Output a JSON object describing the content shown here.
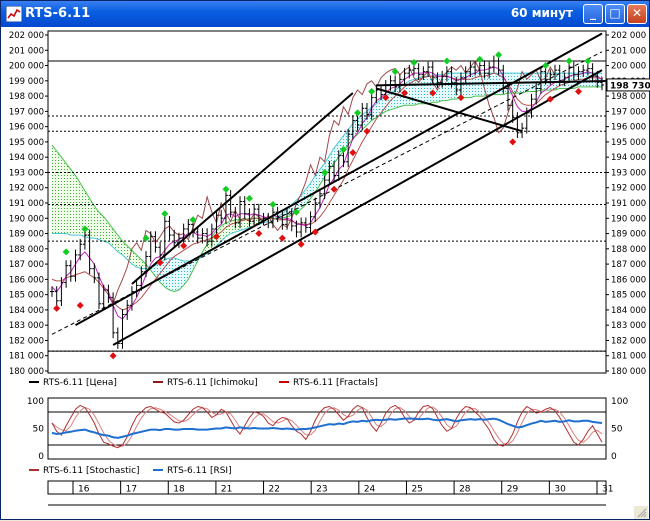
{
  "window": {
    "title": "RTS-6.11",
    "timeframe": "60 минут",
    "minimize_label": "_",
    "maximize_label": "□",
    "close_label": "✕"
  },
  "legend_main": [
    {
      "name": "RTS-6.11 [Цена]",
      "color": "#000000"
    },
    {
      "name": "RTS-6.11 [Ichimoku]",
      "color": "#8b1a1a"
    },
    {
      "name": "RTS-6.11 [Fractals]",
      "color": "#cc0000"
    }
  ],
  "legend_osc": [
    {
      "name": "RTS-6.11 [Stochastic]",
      "color": "#b03030"
    },
    {
      "name": "RTS-6.11 [RSI]",
      "color": "#1f6fd0"
    }
  ],
  "price_tag": "198 730",
  "chart_data": {
    "type": "line",
    "title": "",
    "ylim": [
      180000,
      202000
    ],
    "ytick_labels": [
      "180 000",
      "181 000",
      "182 000",
      "183 000",
      "184 000",
      "185 000",
      "186 000",
      "187 000",
      "188 000",
      "189 000",
      "190 000",
      "191 000",
      "192 000",
      "193 000",
      "194 000",
      "195 000",
      "196 000",
      "197 000",
      "198 000",
      "199 000",
      "200 000",
      "201 000",
      "202 000"
    ],
    "x_labels": [
      "16",
      "17",
      "18",
      "21",
      "22",
      "23",
      "24",
      "25",
      "28",
      "29",
      "30",
      "31"
    ],
    "price_close": [
      185200,
      184600,
      185800,
      186900,
      186200,
      187600,
      188300,
      188900,
      186700,
      186100,
      184400,
      185300,
      184800,
      182500,
      181800,
      183700,
      184300,
      185200,
      185600,
      186500,
      187500,
      188800,
      188100,
      187600,
      189800,
      188900,
      188400,
      188700,
      189300,
      189600,
      189100,
      188700,
      189000,
      188500,
      189300,
      190200,
      190000,
      191500,
      190400,
      189700,
      191100,
      190300,
      189800,
      190600,
      189900,
      190000,
      189700,
      190400,
      190100,
      189600,
      190300,
      189500,
      189100,
      189700,
      189400,
      190100,
      191000,
      191600,
      192500,
      193400,
      192800,
      194100,
      193700,
      195500,
      196400,
      196100,
      197200,
      196800,
      197900,
      198400,
      198100,
      198700,
      199000,
      198600,
      199100,
      199500,
      199700,
      199800,
      199400,
      199600,
      199900,
      199200,
      198900,
      199300,
      199600,
      198900,
      198400,
      199200,
      199600,
      199900,
      199700,
      200000,
      199500,
      199900,
      200300,
      199700,
      198500,
      197400,
      196600,
      195600,
      195900,
      196900,
      197800,
      198500,
      199600,
      199100,
      199400,
      199700,
      199000,
      199200,
      199900,
      199400,
      199600,
      199700,
      199800,
      199300,
      198900,
      198730
    ],
    "ichimoku_tenkan": [
      185500,
      185200,
      185600,
      186200,
      186500,
      187000,
      187500,
      187800,
      187400,
      187000,
      186200,
      185500,
      185200,
      184300,
      183600,
      183400,
      183800,
      184300,
      184800,
      185500,
      186300,
      187000,
      187400,
      187500,
      187900,
      188300,
      188500,
      188600,
      188800,
      189000,
      189100,
      188900,
      188900,
      188800,
      189000,
      189400,
      189600,
      190200,
      190300,
      190100,
      190300,
      190300,
      190200,
      190300,
      190200,
      190100,
      190000,
      190200,
      190100,
      189900,
      190000,
      189900,
      189600,
      189600,
      189500,
      189700,
      190200,
      190700,
      191400,
      192200,
      192600,
      193200,
      193500,
      194400,
      195200,
      195600,
      196200,
      196600,
      197200,
      197700,
      197900,
      198200,
      198500,
      198600,
      198800,
      199100,
      199300,
      199500,
      199500,
      199500,
      199600,
      199500,
      199300,
      199300,
      199300,
      199200,
      199000,
      199100,
      199200,
      199400,
      199500,
      199700,
      199700,
      199800,
      199900,
      199800,
      199300,
      198700,
      198000,
      197300,
      197000,
      197000,
      197200,
      197600,
      198200,
      198400,
      198700,
      198900,
      199000,
      199100,
      199300,
      199400,
      199400,
      199500,
      199600,
      199500,
      199300,
      199100
    ],
    "ichimoku_kijun": [
      186000,
      185900,
      185900,
      186100,
      186200,
      186300,
      186400,
      186500,
      186300,
      186100,
      185800,
      185400,
      185000,
      184500,
      184200,
      184000,
      184100,
      184300,
      184500,
      184800,
      185200,
      185600,
      186000,
      186400,
      186800,
      187200,
      187500,
      187700,
      187900,
      188100,
      188300,
      188400,
      188500,
      188600,
      188700,
      188900,
      189100,
      189400,
      189600,
      189700,
      189800,
      189900,
      189900,
      190000,
      190000,
      190000,
      190000,
      190000,
      189900,
      189900,
      189900,
      189800,
      189700,
      189600,
      189600,
      189600,
      189800,
      190100,
      190500,
      191000,
      191500,
      192000,
      192500,
      193200,
      193800,
      194400,
      195000,
      195500,
      196000,
      196500,
      196900,
      197300,
      197700,
      198000,
      198300,
      198600,
      198800,
      199000,
      199100,
      199200,
      199300,
      199300,
      199300,
      199300,
      199300,
      199200,
      199100,
      199100,
      199100,
      199100,
      199200,
      199300,
      199300,
      199400,
      199500,
      199400,
      199200,
      198800,
      198300,
      197800,
      197500,
      197400,
      197400,
      197500,
      197800,
      198100,
      198300,
      198500,
      198700,
      198800,
      198900,
      199000,
      199100,
      199100,
      199200,
      199200,
      199200,
      199100
    ],
    "chikou": [
      null,
      null,
      null,
      null,
      null,
      null,
      null,
      null,
      null,
      null,
      null,
      null,
      184900,
      184400,
      185300,
      186000,
      186800,
      188000,
      188400,
      187900,
      189200,
      189000,
      188400,
      188800,
      189300,
      189500,
      189100,
      188900,
      189000,
      188600,
      189400,
      190200,
      190000,
      191400,
      190400,
      189700,
      191000,
      190300,
      189800,
      190500,
      189900,
      190000,
      189800,
      190300,
      190100,
      189700,
      190200,
      189600,
      189200,
      189600,
      189400,
      190000,
      191000,
      191600,
      192400,
      193500,
      192800,
      194000,
      193700,
      195400,
      196400,
      196100,
      197300,
      196800,
      197900,
      198400,
      198100,
      198800,
      199000,
      198600,
      199200,
      199500,
      199700,
      199800,
      199400,
      199700,
      199900,
      199200,
      198900,
      199300,
      199600,
      198900,
      198400,
      199200,
      199600,
      199900,
      199700,
      200000,
      199500,
      199900,
      200300,
      199700,
      198500,
      197400,
      196600,
      195600,
      195900,
      196900,
      197800,
      198500,
      199600,
      199100,
      199400,
      199700,
      199000,
      199200,
      199900,
      199400,
      null,
      null,
      null,
      null,
      null,
      null,
      null,
      null,
      null,
      null
    ],
    "cloud_upper": [
      189000,
      189000,
      189000,
      189000,
      188900,
      188900,
      188900,
      188800,
      188700,
      188700,
      188600,
      188500,
      188400,
      188100,
      187800,
      187600,
      187300,
      187000,
      186800,
      186700,
      186700,
      186800,
      186900,
      187100,
      187300,
      187400,
      187400,
      187300,
      187200,
      187200,
      187200,
      187300,
      187500,
      187700,
      187900,
      188200,
      188500,
      188800,
      189000,
      189100,
      189200,
      189300,
      189400,
      189500,
      189600,
      189700,
      189800,
      189900,
      190100,
      190300,
      190600,
      190900,
      191200,
      191500,
      191900,
      192300,
      192800,
      193200,
      193600,
      194100,
      194600,
      195000,
      195400,
      195800,
      196200,
      196500,
      196800,
      197000,
      197300,
      197500,
      197800,
      198000,
      198200,
      198400,
      198600,
      198800,
      199000,
      199100,
      199200,
      199300,
      199300,
      199300,
      199400,
      199400,
      199500,
      199500,
      199500,
      199500,
      199500,
      199500,
      199500,
      199500,
      199500,
      199500,
      199500,
      199500,
      199500,
      199500,
      199500,
      199500,
      199500,
      199500,
      199500,
      199500,
      199500,
      199500,
      199500,
      199500,
      199500,
      199500,
      199500,
      199500,
      199500,
      199500,
      199500,
      199500,
      199500,
      199500
    ],
    "cloud_lower": [
      194800,
      194400,
      194000,
      193600,
      193200,
      192800,
      192300,
      191800,
      191300,
      190800,
      190400,
      190100,
      189700,
      189300,
      188900,
      188500,
      188200,
      187900,
      187600,
      187300,
      187000,
      186600,
      186200,
      185800,
      185500,
      185300,
      185200,
      185300,
      185600,
      186000,
      186600,
      187200,
      187800,
      188300,
      188800,
      189200,
      189500,
      189700,
      189800,
      189900,
      189900,
      189900,
      190000,
      190000,
      190000,
      190000,
      190000,
      190000,
      190000,
      190000,
      190100,
      190200,
      190400,
      190600,
      190900,
      191300,
      191700,
      192200,
      192700,
      193200,
      193600,
      194000,
      194400,
      194800,
      195200,
      195500,
      195800,
      196100,
      196400,
      196600,
      196800,
      197000,
      197100,
      197200,
      197300,
      197400,
      197400,
      197400,
      197500,
      197500,
      197500,
      197600,
      197600,
      197700,
      197700,
      197800,
      197800,
      197900,
      197900,
      197900,
      198000,
      198000,
      198000,
      198100,
      198100,
      198100,
      198100,
      198200,
      198200,
      198200,
      198200,
      198300,
      198300,
      198300,
      198400,
      198400,
      198400,
      198400,
      198500,
      198500,
      198500,
      198500,
      198600,
      198600,
      198600,
      198600,
      198600,
      198600
    ],
    "fractals_up": [
      [
        3,
        187800
      ],
      [
        7,
        189300
      ],
      [
        20,
        188700
      ],
      [
        24,
        190300
      ],
      [
        30,
        189900
      ],
      [
        37,
        191900
      ],
      [
        42,
        191300
      ],
      [
        47,
        190900
      ],
      [
        52,
        190400
      ],
      [
        58,
        193000
      ],
      [
        62,
        194500
      ],
      [
        65,
        196900
      ],
      [
        68,
        198300
      ],
      [
        73,
        199600
      ],
      [
        77,
        200200
      ],
      [
        84,
        200300
      ],
      [
        91,
        200400
      ],
      [
        95,
        200700
      ],
      [
        105,
        200000
      ],
      [
        110,
        200300
      ],
      [
        114,
        200300
      ]
    ],
    "fractals_down": [
      [
        1,
        184100
      ],
      [
        6,
        184300
      ],
      [
        13,
        181000
      ],
      [
        23,
        187100
      ],
      [
        28,
        188200
      ],
      [
        35,
        188800
      ],
      [
        44,
        189000
      ],
      [
        49,
        188700
      ],
      [
        53,
        188300
      ],
      [
        56,
        189100
      ],
      [
        60,
        191900
      ],
      [
        64,
        194300
      ],
      [
        67,
        195700
      ],
      [
        71,
        197900
      ],
      [
        75,
        198200
      ],
      [
        81,
        198200
      ],
      [
        87,
        197900
      ],
      [
        98,
        195000
      ],
      [
        106,
        197800
      ],
      [
        112,
        198300
      ]
    ],
    "channel_lines": [
      {
        "from": [
          13,
          181700
        ],
        "to": [
          117,
          199700
        ]
      },
      {
        "from": [
          5,
          183000
        ],
        "to": [
          117,
          202100
        ]
      },
      {
        "from": [
          17,
          185700
        ],
        "to": [
          64,
          198200
        ]
      },
      {
        "from": [
          69,
          198700
        ],
        "to": [
          120,
          199000
        ]
      },
      {
        "from": [
          69,
          198500
        ],
        "to": [
          100,
          195700
        ]
      }
    ],
    "horizontal_levels": [
      200300,
      196700,
      195700,
      193000,
      190900,
      188500,
      181300
    ],
    "osc_ylim": [
      0,
      100
    ],
    "osc_ticks": [
      0,
      50,
      100
    ],
    "stochastic": [
      60,
      45,
      38,
      55,
      70,
      85,
      92,
      88,
      75,
      60,
      40,
      25,
      22,
      18,
      15,
      20,
      35,
      55,
      72,
      80,
      88,
      90,
      85,
      80,
      78,
      70,
      62,
      60,
      65,
      75,
      85,
      90,
      88,
      80,
      70,
      75,
      85,
      80,
      65,
      50,
      40,
      55,
      70,
      80,
      78,
      72,
      60,
      55,
      65,
      70,
      68,
      55,
      45,
      40,
      30,
      45,
      65,
      80,
      88,
      90,
      85,
      75,
      65,
      72,
      85,
      92,
      88,
      70,
      55,
      45,
      60,
      78,
      88,
      92,
      85,
      70,
      60,
      65,
      80,
      90,
      92,
      86,
      70,
      55,
      45,
      50,
      68,
      82,
      90,
      88,
      80,
      72,
      60,
      48,
      30,
      20,
      18,
      25,
      40,
      62,
      80,
      90,
      85,
      78,
      80,
      85,
      88,
      82,
      70,
      55,
      40,
      25,
      20,
      30,
      45,
      55,
      40,
      25
    ],
    "rsi": [
      42,
      40,
      41,
      43,
      44,
      46,
      47,
      48,
      45,
      43,
      40,
      38,
      37,
      34,
      33,
      35,
      37,
      40,
      42,
      44,
      46,
      48,
      48,
      47,
      49,
      49,
      48,
      48,
      49,
      49,
      49,
      48,
      48,
      48,
      49,
      50,
      50,
      52,
      51,
      50,
      52,
      51,
      50,
      51,
      50,
      50,
      50,
      51,
      50,
      49,
      50,
      49,
      48,
      49,
      49,
      50,
      52,
      54,
      56,
      58,
      57,
      59,
      58,
      61,
      63,
      62,
      64,
      63,
      65,
      66,
      65,
      66,
      67,
      66,
      67,
      68,
      68,
      68,
      67,
      67,
      68,
      66,
      65,
      66,
      67,
      65,
      63,
      65,
      66,
      67,
      66,
      67,
      66,
      67,
      68,
      66,
      62,
      58,
      55,
      52,
      53,
      56,
      59,
      61,
      64,
      62,
      63,
      64,
      62,
      63,
      65,
      63,
      63,
      64,
      64,
      62,
      61,
      60
    ]
  }
}
